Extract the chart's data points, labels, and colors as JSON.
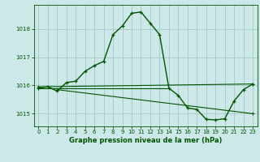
{
  "title": "Graphe pression niveau de la mer (hPa)",
  "background_color": "#cce8e8",
  "grid_color": "#aacccc",
  "line_color": "#005500",
  "xlim": [
    -0.5,
    23.5
  ],
  "ylim": [
    1014.55,
    1018.85
  ],
  "yticks": [
    1015,
    1016,
    1017,
    1018
  ],
  "xticks": [
    0,
    1,
    2,
    3,
    4,
    5,
    6,
    7,
    8,
    9,
    10,
    11,
    12,
    13,
    14,
    15,
    16,
    17,
    18,
    19,
    20,
    21,
    22,
    23
  ],
  "series1_x": [
    0,
    1,
    2,
    3,
    4,
    5,
    6,
    7,
    8,
    9,
    10,
    11,
    12,
    13,
    14,
    15,
    16,
    17,
    18,
    19,
    20,
    21,
    22,
    23
  ],
  "series1_y": [
    1015.9,
    1015.95,
    1015.8,
    1016.1,
    1016.15,
    1016.5,
    1016.7,
    1016.85,
    1017.8,
    1018.1,
    1018.55,
    1018.6,
    1018.2,
    1017.8,
    1015.9,
    1015.65,
    1015.2,
    1015.15,
    1014.8,
    1014.78,
    1014.82,
    1015.45,
    1015.85,
    1016.05
  ],
  "series2_x": [
    0,
    23
  ],
  "series2_y": [
    1015.95,
    1016.05
  ],
  "series3_x": [
    2,
    23
  ],
  "series3_y": [
    1015.85,
    1015.0
  ],
  "series4_x": [
    0,
    14
  ],
  "series4_y": [
    1015.9,
    1015.9
  ]
}
